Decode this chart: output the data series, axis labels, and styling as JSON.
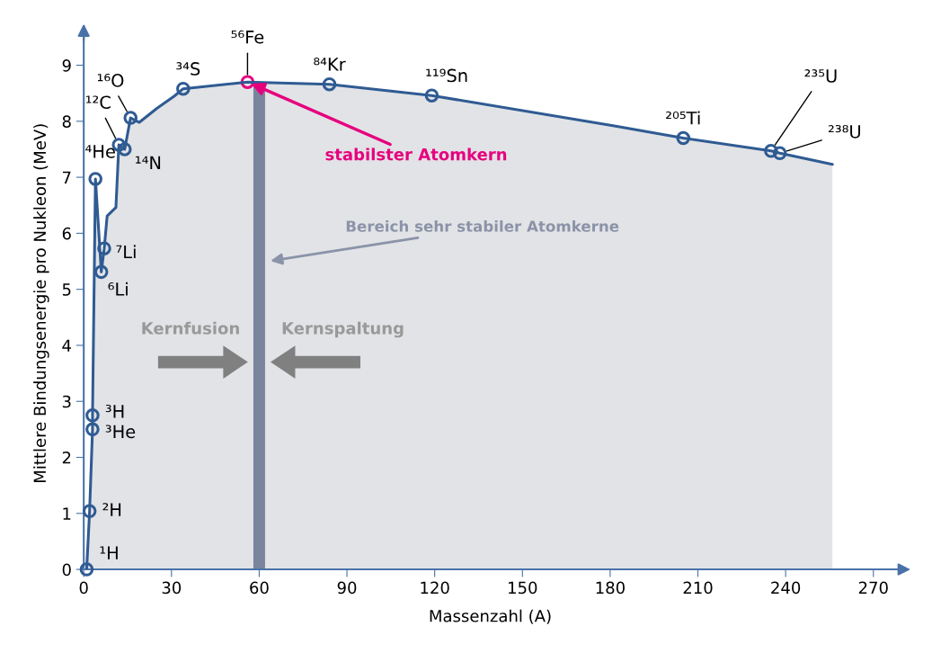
{
  "chart_data": {
    "type": "line",
    "xlabel": "Massenzahl (A)",
    "ylabel": "Mittlere Bindungsenergie pro Nukleon (MeV)",
    "xlim": [
      0,
      278
    ],
    "ylim": [
      0,
      9.5
    ],
    "xticks": [
      0,
      30,
      60,
      90,
      120,
      150,
      180,
      210,
      240,
      270
    ],
    "yticks": [
      0,
      1,
      2,
      3,
      4,
      5,
      6,
      7,
      8,
      9
    ],
    "grid": false,
    "legend": false,
    "series": [
      {
        "color": "#2f5b93",
        "marker": "none",
        "x": [
          1,
          2,
          3,
          3,
          4,
          6,
          7,
          8,
          11,
          12,
          14,
          16,
          19,
          25,
          31,
          34,
          56,
          84,
          119,
          181,
          205,
          235,
          238,
          256
        ],
        "values": [
          0,
          1.04,
          2.5,
          2.75,
          6.97,
          5.31,
          5.73,
          6.31,
          6.46,
          7.58,
          7.5,
          8.06,
          7.98,
          8.23,
          8.45,
          8.58,
          8.7,
          8.66,
          8.46,
          7.92,
          7.7,
          7.47,
          7.43,
          7.23
        ]
      },
      {
        "type": "scatter",
        "color": "#2f5b93",
        "marker": "circle",
        "x": [
          1,
          2,
          3,
          3,
          4,
          6,
          7,
          12,
          14,
          16,
          34,
          56,
          84,
          119,
          205,
          235,
          238
        ],
        "values": [
          0,
          1.04,
          2.75,
          2.5,
          6.97,
          5.31,
          5.73,
          7.58,
          7.5,
          8.06,
          8.58,
          8.7,
          8.66,
          8.46,
          7.7,
          7.47,
          7.43
        ],
        "colors": [
          null,
          null,
          null,
          null,
          null,
          null,
          null,
          null,
          null,
          null,
          null,
          "#e6007e",
          null,
          null,
          null,
          null,
          null
        ]
      }
    ],
    "bands": [
      {
        "axis": "x",
        "from": 58,
        "to": 62,
        "color": "#7a849c",
        "label": "Bereich sehr stabiler Atomkerne"
      }
    ],
    "annotations": [
      {
        "text": "¹H",
        "x": 1,
        "y": 0
      },
      {
        "text": "²H",
        "x": 2,
        "y": 1.04
      },
      {
        "text": "³H",
        "x": 3,
        "y": 2.75
      },
      {
        "text": "³He",
        "x": 3,
        "y": 2.5
      },
      {
        "text": "⁴He",
        "x": 4,
        "y": 6.97
      },
      {
        "text": "⁷Li",
        "x": 7,
        "y": 5.73
      },
      {
        "text": "⁶Li",
        "x": 6,
        "y": 5.31
      },
      {
        "text": "¹²C",
        "x": 12,
        "y": 7.58
      },
      {
        "text": "¹⁴N",
        "x": 14,
        "y": 7.5
      },
      {
        "text": "¹⁶O",
        "x": 16,
        "y": 8.06
      },
      {
        "text": "³⁴S",
        "x": 34,
        "y": 8.58
      },
      {
        "text": "⁵⁶Fe",
        "x": 56,
        "y": 8.7
      },
      {
        "text": "⁸⁴Kr",
        "x": 84,
        "y": 8.66
      },
      {
        "text": "¹¹⁹Sn",
        "x": 119,
        "y": 8.46
      },
      {
        "text": "²⁰⁵Ti",
        "x": 205,
        "y": 7.7
      },
      {
        "text": "²³⁵U",
        "x": 235,
        "y": 7.47
      },
      {
        "text": "²³⁸U",
        "x": 238,
        "y": 7.43
      },
      {
        "text": "stabilster Atomkern",
        "x": 56,
        "y": 8.7
      },
      {
        "text": "Kernfusion",
        "x": 57,
        "y": 3.7
      },
      {
        "text": "Kernspaltung",
        "x": 63,
        "y": 3.7
      }
    ]
  }
}
